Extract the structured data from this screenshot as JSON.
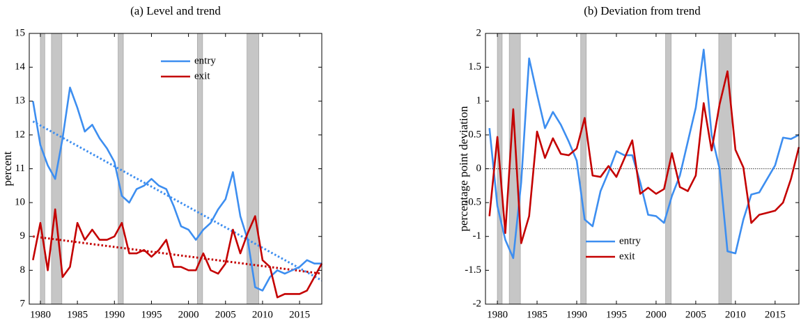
{
  "chart_data": [
    {
      "type": "line",
      "title": "(a) Level and trend",
      "ylabel": "percent",
      "x": [
        1979,
        1980,
        1981,
        1982,
        1983,
        1984,
        1985,
        1986,
        1987,
        1988,
        1989,
        1990,
        1991,
        1992,
        1993,
        1994,
        1995,
        1996,
        1997,
        1998,
        1999,
        2000,
        2001,
        2002,
        2003,
        2004,
        2005,
        2006,
        2007,
        2008,
        2009,
        2010,
        2011,
        2012,
        2013,
        2014,
        2015,
        2016,
        2017,
        2018
      ],
      "series": [
        {
          "name": "entry",
          "color": "#3d8ef0",
          "values": [
            13.0,
            11.7,
            11.1,
            10.7,
            11.9,
            13.4,
            12.8,
            12.1,
            12.3,
            11.9,
            11.6,
            11.2,
            10.2,
            10.0,
            10.4,
            10.5,
            10.7,
            10.5,
            10.4,
            9.9,
            9.3,
            9.2,
            8.9,
            9.2,
            9.4,
            9.8,
            10.1,
            10.9,
            9.6,
            8.9,
            7.5,
            7.4,
            7.8,
            8.0,
            7.9,
            8.0,
            8.1,
            8.3,
            8.2,
            8.2
          ]
        },
        {
          "name": "exit",
          "color": "#c40000",
          "values": [
            8.3,
            9.4,
            8.0,
            9.8,
            7.8,
            8.1,
            9.4,
            8.9,
            9.2,
            8.9,
            8.9,
            9.0,
            9.4,
            8.5,
            8.5,
            8.6,
            8.4,
            8.6,
            8.9,
            8.1,
            8.1,
            8.0,
            8.0,
            8.5,
            8.0,
            7.9,
            8.2,
            9.2,
            8.5,
            9.1,
            9.6,
            8.3,
            8.1,
            7.2,
            7.3,
            7.3,
            7.3,
            7.4,
            7.8,
            8.2
          ]
        }
      ],
      "trend_lines": [
        {
          "color": "#3d8ef0",
          "x": [
            1979,
            2018
          ],
          "values": [
            12.4,
            7.7
          ]
        },
        {
          "color": "#c40000",
          "x": [
            1979,
            2018
          ],
          "values": [
            9.0,
            7.9
          ]
        }
      ],
      "recessions": [
        [
          1980.0,
          1980.6
        ],
        [
          1981.5,
          1982.9
        ],
        [
          1990.5,
          1991.2
        ],
        [
          2001.2,
          2001.9
        ],
        [
          2007.9,
          2009.5
        ]
      ],
      "xlim": [
        1978.5,
        2018
      ],
      "xticks": [
        1980,
        1985,
        1990,
        1995,
        2000,
        2005,
        2010,
        2015
      ],
      "ylim": [
        7,
        15
      ],
      "yticks": [
        7,
        8,
        9,
        10,
        11,
        12,
        13,
        14,
        15
      ],
      "legend": "upper right"
    },
    {
      "type": "line",
      "title": "(b) Deviation from trend",
      "ylabel": "percentage point deviation",
      "x": [
        1979,
        1980,
        1981,
        1982,
        1983,
        1984,
        1985,
        1986,
        1987,
        1988,
        1989,
        1990,
        1991,
        1992,
        1993,
        1994,
        1995,
        1996,
        1997,
        1998,
        1999,
        2000,
        2001,
        2002,
        2003,
        2004,
        2005,
        2006,
        2007,
        2008,
        2009,
        2010,
        2011,
        2012,
        2013,
        2014,
        2015,
        2016,
        2017,
        2018
      ],
      "series": [
        {
          "name": "entry",
          "color": "#3d8ef0",
          "values": [
            0.6,
            -0.55,
            -1.05,
            -1.32,
            -0.2,
            1.63,
            1.1,
            0.6,
            0.84,
            0.65,
            0.4,
            0.12,
            -0.75,
            -0.85,
            -0.33,
            -0.05,
            0.26,
            0.2,
            0.2,
            -0.2,
            -0.68,
            -0.7,
            -0.8,
            -0.4,
            -0.1,
            0.4,
            0.9,
            1.76,
            0.5,
            0.0,
            -1.22,
            -1.25,
            -0.75,
            -0.38,
            -0.35,
            -0.15,
            0.05,
            0.46,
            0.44,
            0.5
          ]
        },
        {
          "name": "exit",
          "color": "#c40000",
          "values": [
            -0.7,
            0.47,
            -0.95,
            0.88,
            -1.1,
            -0.7,
            0.55,
            0.16,
            0.45,
            0.22,
            0.2,
            0.3,
            0.75,
            -0.1,
            -0.12,
            0.04,
            -0.12,
            0.15,
            0.42,
            -0.37,
            -0.28,
            -0.37,
            -0.3,
            0.23,
            -0.27,
            -0.33,
            -0.1,
            0.97,
            0.27,
            0.95,
            1.44,
            0.28,
            0.02,
            -0.8,
            -0.68,
            -0.65,
            -0.62,
            -0.5,
            -0.15,
            0.32
          ]
        }
      ],
      "hline": 0,
      "recessions": [
        [
          1980.0,
          1980.6
        ],
        [
          1981.5,
          1982.9
        ],
        [
          1990.5,
          1991.2
        ],
        [
          2001.2,
          2001.9
        ],
        [
          2007.9,
          2009.5
        ]
      ],
      "xlim": [
        1978.5,
        2018
      ],
      "xticks": [
        1980,
        1985,
        1990,
        1995,
        2000,
        2005,
        2010,
        2015
      ],
      "ylim": [
        -2,
        2
      ],
      "yticks": [
        -2,
        -1.5,
        -1,
        -0.5,
        0,
        0.5,
        1,
        1.5,
        2
      ],
      "legend": "lower center"
    }
  ]
}
